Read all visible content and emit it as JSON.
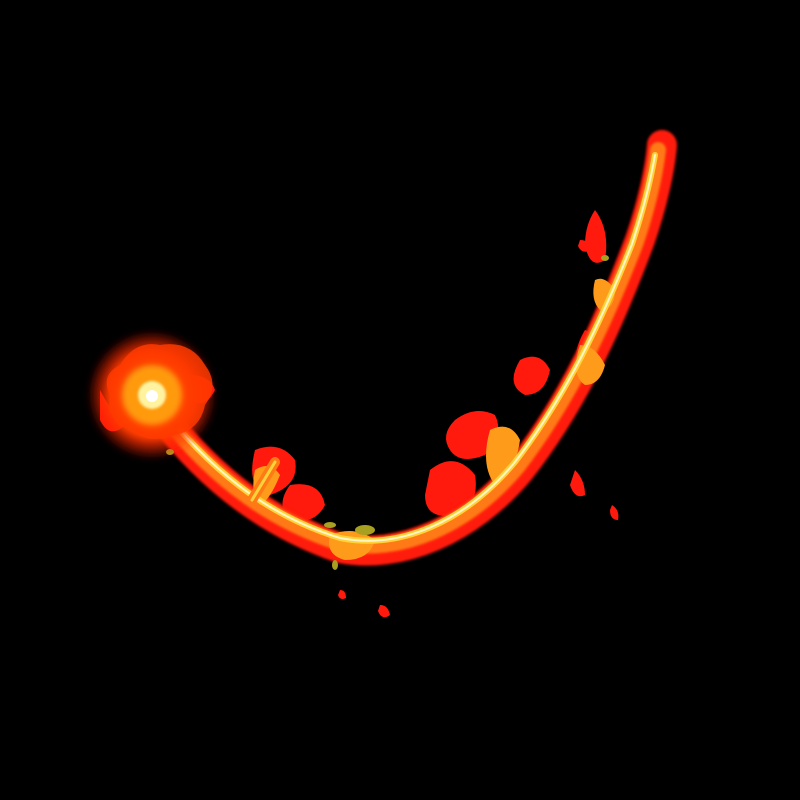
{
  "scene": {
    "subject": "fire-streak",
    "background_color": "#000000",
    "colors": {
      "outer_flame": "#ff1a0d",
      "mid_flame": "#ff7a14",
      "inner_flame": "#ffd23a",
      "core": "#fff6c4",
      "ember_glow": "#ff4a00",
      "olive_fleck": "#a8a020"
    }
  }
}
